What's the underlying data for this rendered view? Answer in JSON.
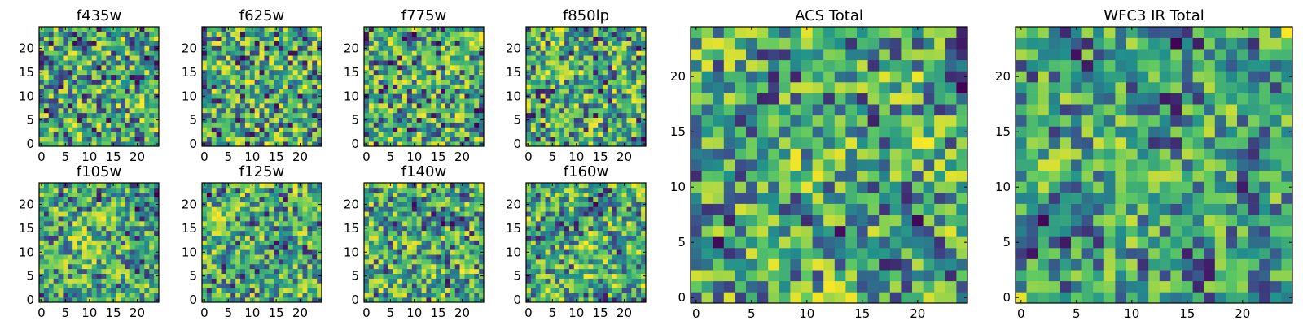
{
  "chart_data": [
    {
      "type": "heatmap",
      "title": "f435w",
      "colormap": "viridis",
      "grid_size": 25,
      "seed": 11,
      "smooth": 0.05,
      "x_ticks": [
        0,
        5,
        10,
        15,
        20
      ],
      "y_ticks": [
        0,
        5,
        10,
        15,
        20
      ],
      "x_tick_labels": [
        "0",
        "5",
        "10",
        "15",
        "20"
      ],
      "y_tick_labels": [
        "0",
        "5",
        "10",
        "15",
        "20"
      ],
      "value_range": [
        0,
        1
      ]
    },
    {
      "type": "heatmap",
      "title": "f625w",
      "colormap": "viridis",
      "grid_size": 25,
      "seed": 23,
      "smooth": 0.05,
      "x_ticks": [
        0,
        5,
        10,
        15,
        20
      ],
      "y_ticks": [
        0,
        5,
        10,
        15,
        20
      ],
      "x_tick_labels": [
        "0",
        "5",
        "10",
        "15",
        "20"
      ],
      "y_tick_labels": [
        "0",
        "5",
        "10",
        "15",
        "20"
      ],
      "value_range": [
        0,
        1
      ]
    },
    {
      "type": "heatmap",
      "title": "f775w",
      "colormap": "viridis",
      "grid_size": 25,
      "seed": 37,
      "smooth": 0.1,
      "x_ticks": [
        0,
        5,
        10,
        15,
        20
      ],
      "y_ticks": [
        0,
        5,
        10,
        15,
        20
      ],
      "x_tick_labels": [
        "0",
        "5",
        "10",
        "15",
        "20"
      ],
      "y_tick_labels": [
        "0",
        "5",
        "10",
        "15",
        "20"
      ],
      "value_range": [
        0,
        1
      ]
    },
    {
      "type": "heatmap",
      "title": "f850lp",
      "colormap": "viridis",
      "grid_size": 25,
      "seed": 41,
      "smooth": 0.05,
      "x_ticks": [
        0,
        5,
        10,
        15,
        20
      ],
      "y_ticks": [
        0,
        5,
        10,
        15,
        20
      ],
      "x_tick_labels": [
        "0",
        "5",
        "10",
        "15",
        "20"
      ],
      "y_tick_labels": [
        "0",
        "5",
        "10",
        "15",
        "20"
      ],
      "value_range": [
        0,
        1
      ]
    },
    {
      "type": "heatmap",
      "title": "ACS Total",
      "colormap": "viridis",
      "grid_size": 25,
      "seed": 53,
      "smooth": 0.3,
      "x_ticks": [
        0,
        5,
        10,
        15,
        20
      ],
      "y_ticks": [
        0,
        5,
        10,
        15,
        20
      ],
      "x_tick_labels": [
        "0",
        "5",
        "10",
        "15",
        "20"
      ],
      "y_tick_labels": [
        "0",
        "5",
        "10",
        "15",
        "20"
      ],
      "value_range": [
        0,
        1
      ]
    },
    {
      "type": "heatmap",
      "title": "WFC3 IR Total",
      "colormap": "viridis",
      "grid_size": 25,
      "seed": 67,
      "smooth": 0.5,
      "x_ticks": [
        0,
        5,
        10,
        15,
        20
      ],
      "y_ticks": [
        0,
        5,
        10,
        15,
        20
      ],
      "x_tick_labels": [
        "0",
        "5",
        "10",
        "15",
        "20"
      ],
      "y_tick_labels": [
        "0",
        "5",
        "10",
        "15",
        "20"
      ],
      "value_range": [
        0,
        1
      ]
    },
    {
      "type": "heatmap",
      "title": "f105w",
      "colormap": "viridis",
      "grid_size": 25,
      "seed": 71,
      "smooth": 0.35,
      "x_ticks": [
        0,
        5,
        10,
        15,
        20
      ],
      "y_ticks": [
        0,
        5,
        10,
        15,
        20
      ],
      "x_tick_labels": [
        "0",
        "5",
        "10",
        "15",
        "20"
      ],
      "y_tick_labels": [
        "0",
        "5",
        "10",
        "15",
        "20"
      ],
      "value_range": [
        0,
        1
      ]
    },
    {
      "type": "heatmap",
      "title": "f125w",
      "colormap": "viridis",
      "grid_size": 25,
      "seed": 83,
      "smooth": 0.35,
      "x_ticks": [
        0,
        5,
        10,
        15,
        20
      ],
      "y_ticks": [
        0,
        5,
        10,
        15,
        20
      ],
      "x_tick_labels": [
        "0",
        "5",
        "10",
        "15",
        "20"
      ],
      "y_tick_labels": [
        "0",
        "5",
        "10",
        "15",
        "20"
      ],
      "value_range": [
        0,
        1
      ]
    },
    {
      "type": "heatmap",
      "title": "f140w",
      "colormap": "viridis",
      "grid_size": 25,
      "seed": 97,
      "smooth": 0.35,
      "x_ticks": [
        0,
        5,
        10,
        15,
        20
      ],
      "y_ticks": [
        0,
        5,
        10,
        15,
        20
      ],
      "x_tick_labels": [
        "0",
        "5",
        "10",
        "15",
        "20"
      ],
      "y_tick_labels": [
        "0",
        "5",
        "10",
        "15",
        "20"
      ],
      "value_range": [
        0,
        1
      ]
    },
    {
      "type": "heatmap",
      "title": "f160w",
      "colormap": "viridis",
      "grid_size": 25,
      "seed": 101,
      "smooth": 0.35,
      "x_ticks": [
        0,
        5,
        10,
        15,
        20
      ],
      "y_ticks": [
        0,
        5,
        10,
        15,
        20
      ],
      "x_tick_labels": [
        "0",
        "5",
        "10",
        "15",
        "20"
      ],
      "y_tick_labels": [
        "0",
        "5",
        "10",
        "15",
        "20"
      ],
      "value_range": [
        0,
        1
      ]
    }
  ],
  "colors": {
    "viridis_stops": [
      "#440154",
      "#3b528b",
      "#21918c",
      "#5ec962",
      "#fde725"
    ]
  }
}
